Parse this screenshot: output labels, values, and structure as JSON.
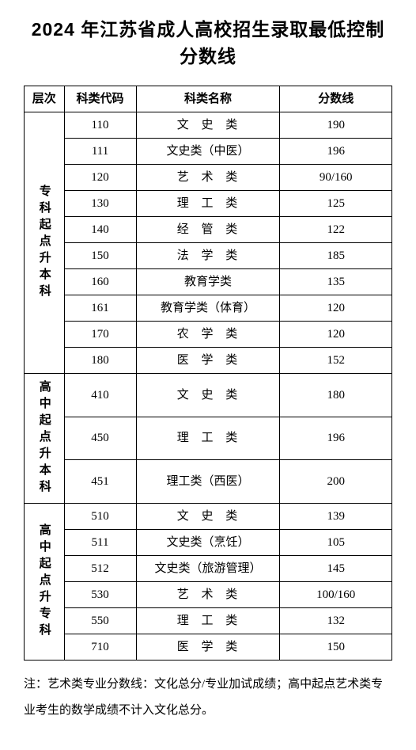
{
  "title": "2024 年江苏省成人高校招生录取最低控制分数线",
  "header": {
    "level": "层次",
    "code": "科类代码",
    "name": "科类名称",
    "score": "分数线"
  },
  "groups": [
    {
      "level_label": "专科起点升本科",
      "rows": [
        {
          "code": "110",
          "name": "文 史 类",
          "name_style": "spaced3",
          "score": "190"
        },
        {
          "code": "111",
          "name": "文史类（中医）",
          "name_style": "",
          "score": "196"
        },
        {
          "code": "120",
          "name": "艺 术 类",
          "name_style": "spaced3",
          "score": "90/160"
        },
        {
          "code": "130",
          "name": "理 工 类",
          "name_style": "spaced3",
          "score": "125"
        },
        {
          "code": "140",
          "name": "经 管 类",
          "name_style": "spaced3",
          "score": "122"
        },
        {
          "code": "150",
          "name": "法 学 类",
          "name_style": "spaced3",
          "score": "185"
        },
        {
          "code": "160",
          "name": "教育学类",
          "name_style": "",
          "score": "135"
        },
        {
          "code": "161",
          "name": "教育学类（体育）",
          "name_style": "",
          "score": "120"
        },
        {
          "code": "170",
          "name": "农 学 类",
          "name_style": "spaced3",
          "score": "120"
        },
        {
          "code": "180",
          "name": "医 学 类",
          "name_style": "spaced3",
          "score": "152"
        }
      ]
    },
    {
      "level_label": "高中起点升本科",
      "rows": [
        {
          "code": "410",
          "name": "文 史 类",
          "name_style": "spaced3",
          "score": "180"
        },
        {
          "code": "450",
          "name": "理 工 类",
          "name_style": "spaced3",
          "score": "196"
        },
        {
          "code": "451",
          "name": "理工类（西医）",
          "name_style": "",
          "score": "200"
        }
      ]
    },
    {
      "level_label": "高中起点升专科",
      "rows": [
        {
          "code": "510",
          "name": "文 史 类",
          "name_style": "spaced3",
          "score": "139"
        },
        {
          "code": "511",
          "name": "文史类（烹饪）",
          "name_style": "",
          "score": "105"
        },
        {
          "code": "512",
          "name": "文史类（旅游管理）",
          "name_style": "",
          "score": "145"
        },
        {
          "code": "530",
          "name": "艺 术 类",
          "name_style": "spaced3",
          "score": "100/160"
        },
        {
          "code": "550",
          "name": "理 工 类",
          "name_style": "spaced3",
          "score": "132"
        },
        {
          "code": "710",
          "name": "医 学 类",
          "name_style": "spaced3",
          "score": "150"
        }
      ]
    }
  ],
  "footnote": "注：艺术类专业分数线：文化总分/专业加试成绩；高中起点艺术类专业考生的数学成绩不计入文化总分。"
}
